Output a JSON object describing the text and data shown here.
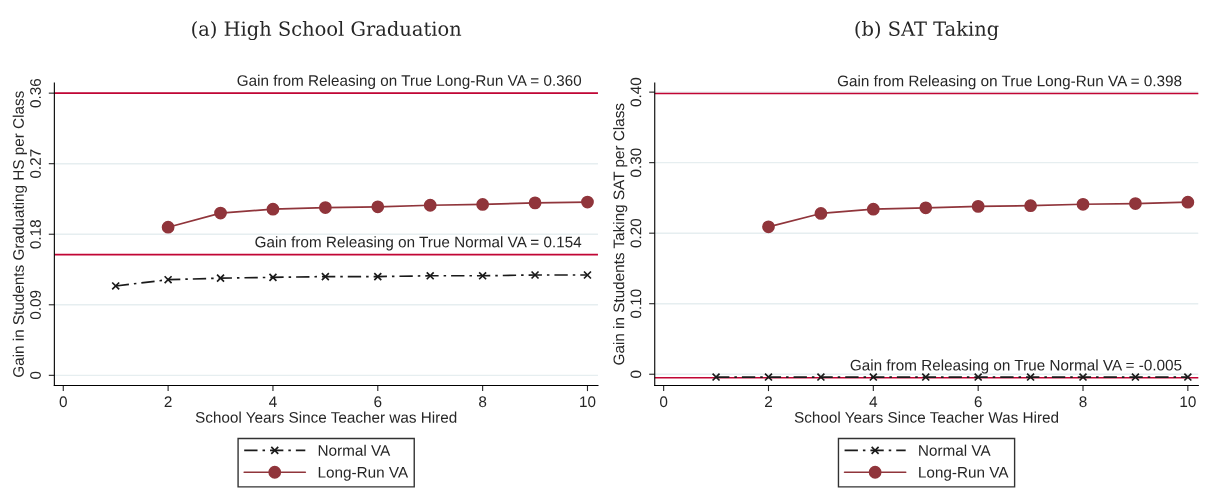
{
  "chart_data": [
    {
      "type": "line",
      "title": "(a) High School Graduation",
      "xlabel": "School Years Since Teacher was Hired",
      "ylabel": "Gain in Students Graduating HS per Class",
      "x": [
        1,
        2,
        3,
        4,
        5,
        6,
        7,
        8,
        9,
        10
      ],
      "series": [
        {
          "name": "Normal VA",
          "color": "#1a1a1a",
          "marker": "cross",
          "line_style": "dashed",
          "values": [
            0.114,
            0.122,
            0.124,
            0.125,
            0.126,
            0.126,
            0.127,
            0.127,
            0.128,
            0.128
          ]
        },
        {
          "name": "Long-Run VA",
          "color": "#90353b",
          "marker": "circle",
          "line_style": "solid",
          "values": [
            null,
            0.189,
            0.207,
            0.212,
            0.214,
            0.215,
            0.217,
            0.218,
            0.22,
            0.221
          ]
        }
      ],
      "ref_lines": [
        {
          "axis": "y",
          "value": 0.36,
          "label": "Gain from Releasing on True Long-Run VA = 0.360",
          "color": "#c10534"
        },
        {
          "axis": "y",
          "value": 0.154,
          "label": "Gain from Releasing on True Normal VA = 0.154",
          "color": "#c10534"
        }
      ],
      "xlim": [
        -0.17,
        10.2
      ],
      "ylim": [
        -0.013,
        0.373
      ],
      "xticks": [
        0,
        2,
        4,
        6,
        8,
        10
      ],
      "yticks": [
        {
          "value": 0,
          "label": "0"
        },
        0.09,
        0.18,
        0.27,
        0.36
      ],
      "grid": "y",
      "legend": "bottom"
    },
    {
      "type": "line",
      "title": "(b) SAT Taking",
      "xlabel": "School Years Since Teacher Was Hired",
      "ylabel": "Gain in Students Taking SAT per Class",
      "x": [
        1,
        2,
        3,
        4,
        5,
        6,
        7,
        8,
        9,
        10
      ],
      "series": [
        {
          "name": "Normal VA",
          "color": "#1a1a1a",
          "marker": "cross",
          "line_style": "dashed",
          "values": [
            -0.004,
            -0.004,
            -0.004,
            -0.004,
            -0.004,
            -0.004,
            -0.004,
            -0.004,
            -0.004,
            -0.004
          ]
        },
        {
          "name": "Long-Run VA",
          "color": "#90353b",
          "marker": "circle",
          "line_style": "solid",
          "values": [
            null,
            0.209,
            0.228,
            0.234,
            0.236,
            0.238,
            0.239,
            0.241,
            0.242,
            0.244
          ]
        }
      ],
      "ref_lines": [
        {
          "axis": "y",
          "value": 0.398,
          "label": "Gain from Releasing on True Long-Run VA = 0.398",
          "color": "#c10534"
        },
        {
          "axis": "y",
          "value": -0.005,
          "label": "Gain from Releasing on True Normal VA = -0.005",
          "color": "#c10534"
        }
      ],
      "xlim": [
        -0.17,
        10.2
      ],
      "ylim": [
        -0.016,
        0.413
      ],
      "xticks": [
        0,
        2,
        4,
        6,
        8,
        10
      ],
      "yticks": [
        {
          "value": 0,
          "label": "0"
        },
        {
          "value": 0.1,
          "label": "0.10"
        },
        {
          "value": 0.2,
          "label": "0.20"
        },
        {
          "value": 0.3,
          "label": "0.30"
        },
        {
          "value": 0.4,
          "label": "0.40"
        }
      ],
      "grid": "y",
      "legend": "bottom"
    }
  ]
}
